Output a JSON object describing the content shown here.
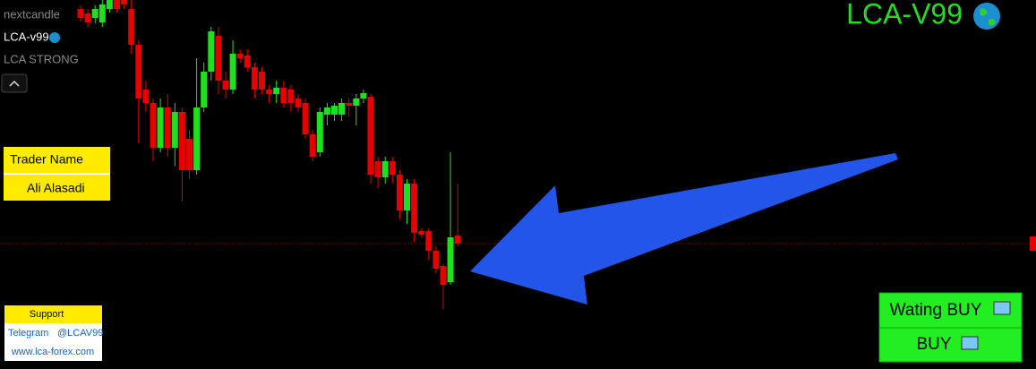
{
  "chart_data": {
    "type": "candlestick",
    "ylim": [
      0,
      41.2
    ],
    "colors": {
      "up": "#1ee01e",
      "down": "#e60000",
      "price_line": "#b00000"
    },
    "open": [
      40.2,
      39.7,
      39.2,
      38.7,
      40.2,
      41.2,
      41.2,
      40.2,
      36.2,
      31.2,
      29.7,
      24.7,
      29.2,
      24.7,
      28.7,
      25.7,
      22.2,
      29.2,
      33.2,
      37.2,
      32.2,
      31.2,
      35.2,
      35.0,
      33.7,
      33.2,
      31.2,
      30.7,
      31.4,
      31.2,
      30.2,
      29.7,
      26.2,
      24.2,
      28.4,
      28.4,
      28.4,
      29.7,
      29.4,
      30.2,
      30.4,
      23.2,
      21.4,
      23.2,
      21.7,
      17.7,
      20.7,
      15.4,
      15.4,
      13.2,
      11.5,
      9.7,
      14.9
    ],
    "high": [
      40.6,
      40.2,
      40.6,
      41.2,
      41.2,
      41.2,
      41.2,
      41.2,
      36.7,
      32.2,
      30.2,
      30.2,
      30.7,
      29.7,
      29.2,
      26.7,
      34.7,
      34.2,
      38.2,
      38.2,
      33.2,
      36.7,
      35.7,
      35.7,
      34.2,
      33.7,
      31.7,
      32.2,
      32.2,
      31.7,
      30.7,
      30.2,
      26.7,
      29.2,
      29.7,
      29.7,
      30.2,
      30.2,
      30.7,
      31.2,
      30.7,
      23.7,
      23.7,
      23.7,
      22.2,
      21.2,
      21.2,
      15.7,
      15.7,
      13.7,
      11.7,
      24.2,
      20.7
    ],
    "low": [
      38.8,
      38.2,
      38.6,
      38.2,
      39.8,
      39.8,
      40.2,
      35.2,
      25.2,
      28.7,
      23.2,
      24.2,
      23.7,
      22.7,
      18.7,
      21.2,
      21.7,
      28.7,
      32.2,
      30.7,
      30.2,
      30.7,
      34.2,
      33.2,
      30.2,
      30.7,
      29.7,
      29.7,
      29.2,
      28.7,
      28.7,
      25.7,
      23.2,
      23.7,
      27.2,
      27.7,
      27.7,
      28.2,
      27.2,
      29.7,
      20.7,
      20.2,
      20.7,
      20.7,
      16.7,
      16.2,
      14.2,
      14.7,
      12.2,
      10.7,
      6.7,
      9.4,
      13.7
    ],
    "close": [
      39.2,
      38.7,
      40.2,
      40.7,
      41.2,
      40.2,
      40.7,
      36.2,
      30.2,
      29.7,
      24.7,
      29.2,
      24.7,
      28.7,
      22.2,
      22.2,
      29.2,
      33.2,
      37.7,
      32.2,
      31.2,
      35.2,
      34.7,
      33.7,
      31.2,
      31.2,
      30.7,
      31.4,
      29.7,
      29.7,
      29.2,
      26.2,
      23.7,
      28.7,
      29.2,
      29.4,
      29.7,
      29.4,
      30.2,
      30.8,
      21.7,
      21.4,
      23.2,
      21.7,
      17.7,
      20.7,
      15.2,
      15.0,
      13.2,
      11.2,
      9.4,
      14.7,
      14.0
    ],
    "price_line": 14.0
  },
  "indicators": [
    "nextcandle",
    "LCA-v99",
    "LCA STRONG"
  ],
  "brand": "LCA-V99",
  "trader_panel": {
    "title": "Trader Name",
    "name": "Ali Alasadi"
  },
  "support_panel": {
    "title": "Support",
    "telegram_label": "Telegram",
    "telegram_handle": "@LCAV99",
    "website": "www.lca-forex.com"
  },
  "signals": [
    "Wating BUY",
    "BUY"
  ]
}
